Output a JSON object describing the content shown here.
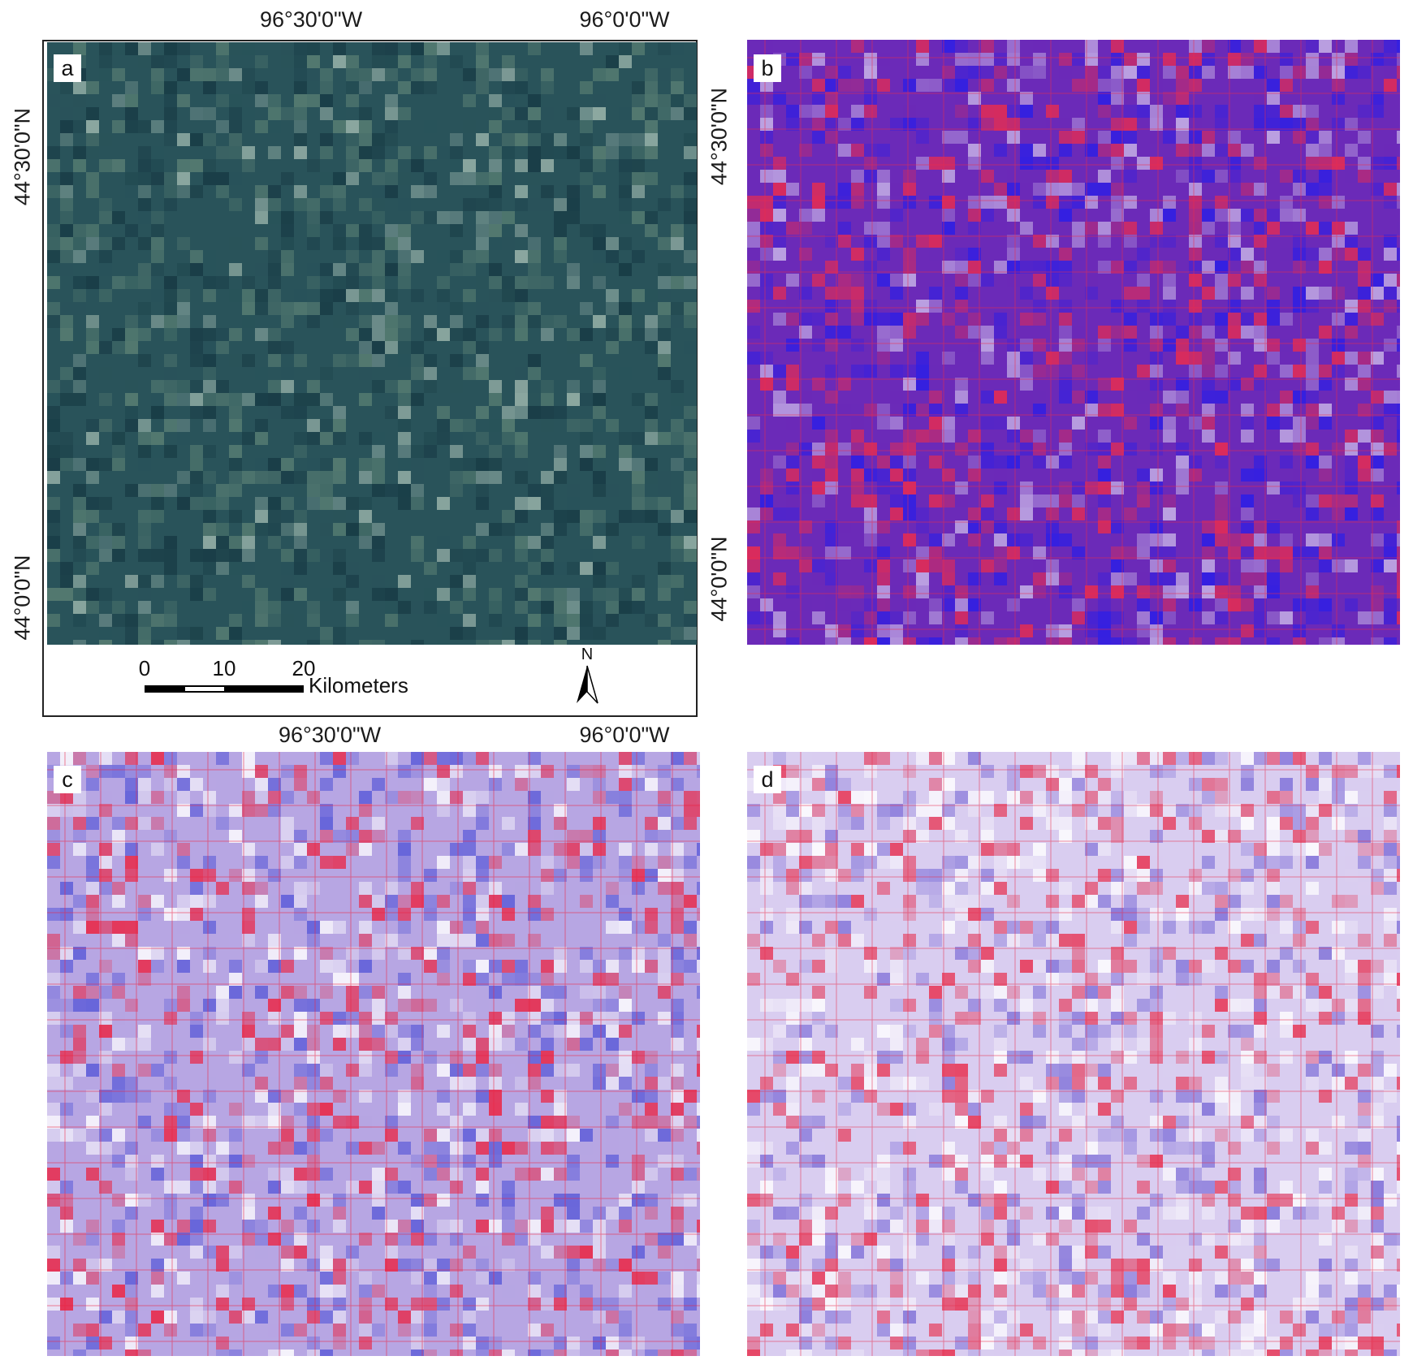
{
  "figure": {
    "panels": [
      {
        "label": "a",
        "rendering": "true-color",
        "colors": {
          "base": "#29535a",
          "dark": "#173a44",
          "light": "#5a8074",
          "pale": "#9eb7ad"
        }
      },
      {
        "label": "b",
        "rendering": "false-color",
        "colors": {
          "base": "#6b2ab8",
          "blue": "#2a1ee8",
          "red": "#ec2c4c",
          "pale": "#c9b6e8"
        }
      },
      {
        "label": "c",
        "rendering": "false-color",
        "colors": {
          "base": "#b7a6e3",
          "blue": "#5a5ad8",
          "red": "#ec2240",
          "pale": "#ffffff"
        }
      },
      {
        "label": "d",
        "rendering": "false-color",
        "colors": {
          "base": "#d9cdf0",
          "blue": "#7f70d8",
          "red": "#e8304f",
          "pale": "#ffffff"
        }
      }
    ],
    "coordinates": {
      "top": [
        "96°30'0\"W",
        "96°0'0\"W"
      ],
      "bottom": [
        "96°30'0\"W",
        "96°0'0\"W"
      ],
      "left": [
        "44°30'0\"N",
        "44°0'0\"N"
      ],
      "right": [
        "44°30'0\"N",
        "44°0'0\"N"
      ]
    },
    "scalebar": {
      "ticks": [
        "0",
        "10",
        "20"
      ],
      "unit": "Kilometers"
    },
    "north_arrow": {
      "letter": "N",
      "icon": "north-arrow-icon"
    }
  }
}
